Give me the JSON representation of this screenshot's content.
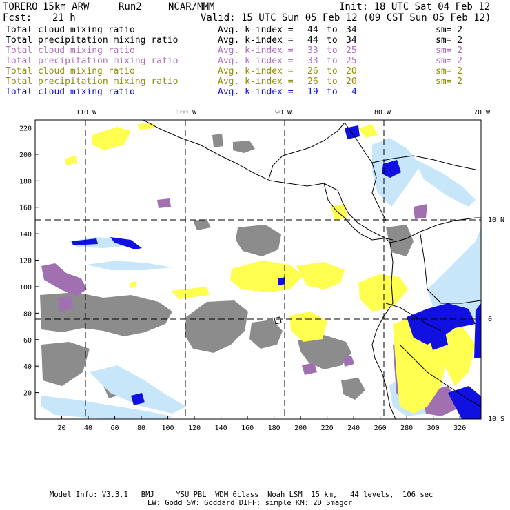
{
  "header": {
    "model": "TORERO",
    "resolution": "15km ARW",
    "run": "Run2",
    "org": "NCAR/MMM",
    "init": "Init: 18 UTC Sat 04 Feb 12",
    "fcst_label": "Fcst:",
    "fcst_value": "21 h",
    "valid": "Valid: 15 UTC Sun 05 Feb 12 (09 CST Sun 05 Feb 12)"
  },
  "legend": [
    {
      "field": "Total cloud mixing ratio",
      "label": "Avg. k-index =",
      "from": "44",
      "to_word": "to",
      "to": "34",
      "sm": "sm= 2",
      "color": "#000000"
    },
    {
      "field": "Total precipitation mixing ratio",
      "label": "Avg. k-index =",
      "from": "44",
      "to_word": "to",
      "to": "34",
      "sm": "sm= 2",
      "color": "#000000"
    },
    {
      "field": "Total cloud mixing ratio",
      "label": "Avg. k-index =",
      "from": "33",
      "to_word": "to",
      "to": "25",
      "sm": "sm= 2",
      "color": "#b070c0"
    },
    {
      "field": "Total precipitation mixing ratio",
      "label": "Avg. k-index =",
      "from": "33",
      "to_word": "to",
      "to": "25",
      "sm": "sm= 2",
      "color": "#b070c0"
    },
    {
      "field": "Total cloud mixing ratio",
      "label": "Avg. k-index =",
      "from": "26",
      "to_word": "to",
      "to": "20",
      "sm": "sm= 2",
      "color": "#909000"
    },
    {
      "field": "Total precipitation mixing ratio",
      "label": "Avg. k-index =",
      "from": "26",
      "to_word": "to",
      "to": "20",
      "sm": "sm= 2",
      "color": "#909000"
    },
    {
      "field": "Total cloud mixing ratio",
      "label": "Avg. k-index =",
      "from": "19",
      "to_word": "to",
      "to": "4",
      "sm": "",
      "color": "#1010e0"
    }
  ],
  "map": {
    "lon_labels": [
      "110 W",
      "100 W",
      "90 W",
      "80 W",
      "70 W"
    ],
    "lat_labels": [
      "10 N",
      "0",
      "10 S"
    ],
    "x_ticks": [
      "20",
      "40",
      "60",
      "80",
      "100",
      "120",
      "140",
      "160",
      "180",
      "200",
      "220",
      "240",
      "260",
      "280",
      "300",
      "320"
    ],
    "y_ticks": [
      "20",
      "40",
      "60",
      "80",
      "100",
      "120",
      "140",
      "160",
      "180",
      "200",
      "220"
    ],
    "colors": {
      "gray": "#8c8c8c",
      "yellow": "#ffff50",
      "purple": "#a070b0",
      "blue": "#1010e0",
      "light_blue": "#c8e6fa"
    }
  },
  "footer": {
    "line1": "Model Info: V3.3.1   BMJ     YSU PBL  WDM 6class  Noah LSM  15 km,   44 levels,  106 sec",
    "line2": "LW: Godd SW: Goddard DIFF: simple KM: 2D Smagor"
  }
}
